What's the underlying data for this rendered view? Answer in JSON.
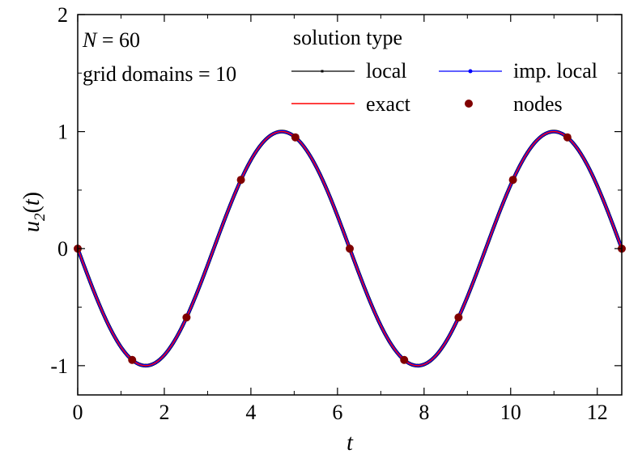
{
  "chart_data": {
    "type": "line",
    "xlabel": "t",
    "ylabel": "u2(t)",
    "xlim": [
      0,
      12.566
    ],
    "ylim": [
      -1.25,
      2
    ],
    "xticks": [
      0,
      2,
      4,
      6,
      8,
      10,
      12
    ],
    "xtick_labels": [
      "0",
      "2",
      "4",
      "6",
      "8",
      "10",
      "12"
    ],
    "yticks": [
      -1,
      0,
      1,
      2
    ],
    "ytick_labels": [
      "-1",
      "0",
      "1",
      "2"
    ],
    "grid": false,
    "annotations": [
      {
        "id": "n",
        "var": "N",
        "text": " = 60"
      },
      {
        "id": "grid",
        "text": "grid domains = 10"
      }
    ],
    "legend": {
      "title": "solution type",
      "placement": "top-right",
      "entries": [
        {
          "label": "local",
          "color": "#000000",
          "style": "line-square"
        },
        {
          "label": "imp. local",
          "color": "#0000ff",
          "style": "line-dot"
        },
        {
          "label": "exact",
          "color": "#ff0000",
          "style": "line"
        },
        {
          "label": "nodes",
          "color": "#800000",
          "style": "marker"
        }
      ]
    },
    "curve": {
      "function": "-sin(t)",
      "x_range": [
        0,
        12.566
      ]
    },
    "series": [
      {
        "name": "local",
        "color": "#000000"
      },
      {
        "name": "imp. local",
        "color": "#0000ff"
      },
      {
        "name": "exact",
        "color": "#ff0000"
      },
      {
        "name": "nodes",
        "color": "#800000",
        "x": [
          0,
          1.257,
          2.513,
          3.77,
          5.027,
          6.283,
          7.54,
          8.796,
          10.053,
          11.31,
          12.566
        ],
        "y": [
          0,
          -0.951,
          -0.588,
          0.588,
          0.951,
          0,
          -0.951,
          -0.588,
          0.588,
          0.951,
          0
        ]
      }
    ]
  }
}
